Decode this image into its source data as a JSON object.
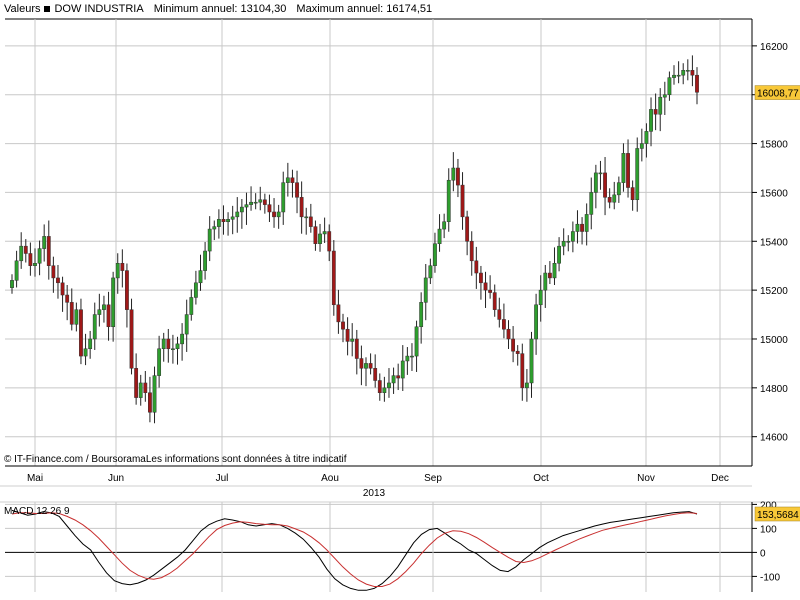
{
  "header": {
    "series_label": "Valeurs",
    "instrument": "DOW INDUSTRIA",
    "min_label": "Minimum annuel: 13104,30",
    "max_label": "Maximum annuel: 16174,51"
  },
  "credit": "© IT-Finance.com / BoursoramaLes informations sont données à titre indicatif",
  "macd_label": "MACD 12 26 9",
  "colors": {
    "up": "#2e9e2e",
    "down": "#a01818",
    "grid": "#c8c8c8",
    "badge": "#f8c838",
    "macd_line": "#000000",
    "signal_line": "#c83030"
  },
  "chart_data": [
    {
      "type": "candlestick",
      "y_ticks": [
        "16200",
        "16000",
        "15800",
        "15600",
        "15400",
        "15200",
        "15000",
        "14800",
        "14600"
      ],
      "y_tick_values": [
        16200,
        16000,
        15800,
        15600,
        15400,
        15200,
        15000,
        14800,
        14600
      ],
      "ylim": [
        14480,
        16310
      ],
      "x_ticks": [
        "Mai",
        "Jun",
        "Jul",
        "Aou",
        "Sep",
        "Oct",
        "Nov",
        "Dec"
      ],
      "x_year_label": "2013",
      "last_value_label": "16008,77",
      "last_value": 16008.77,
      "closes": [
        15240,
        15320,
        15380,
        15350,
        15300,
        15310,
        15370,
        15420,
        15300,
        15250,
        15230,
        15180,
        15150,
        15060,
        15120,
        14930,
        14960,
        15000,
        15100,
        15120,
        15140,
        15050,
        15250,
        15310,
        15280,
        15120,
        14880,
        14760,
        14820,
        14780,
        14700,
        14850,
        14960,
        15000,
        14960,
        14960,
        14980,
        15020,
        15100,
        15170,
        15230,
        15280,
        15360,
        15450,
        15460,
        15490,
        15480,
        15490,
        15500,
        15520,
        15540,
        15550,
        15560,
        15560,
        15570,
        15550,
        15520,
        15500,
        15520,
        15640,
        15660,
        15640,
        15580,
        15500,
        15500,
        15460,
        15390,
        15430,
        15440,
        15360,
        15140,
        15070,
        15040,
        14990,
        15000,
        14920,
        14880,
        14900,
        14880,
        14830,
        14780,
        14800,
        14820,
        14850,
        14840,
        14910,
        14930,
        14930,
        15050,
        15150,
        15250,
        15300,
        15390,
        15450,
        15480,
        15650,
        15700,
        15630,
        15500,
        15400,
        15320,
        15270,
        15230,
        15200,
        15190,
        15120,
        15080,
        15040,
        15000,
        14950,
        14940,
        14800,
        14820,
        15000,
        15140,
        15200,
        15270,
        15250,
        15310,
        15380,
        15400,
        15400,
        15440,
        15470,
        15440,
        15510,
        15600,
        15680,
        15680,
        15580,
        15560,
        15590,
        15640,
        15760,
        15620,
        15570,
        15780,
        15800,
        15850,
        15940,
        15920,
        15990,
        16000,
        16070,
        16080,
        16080,
        16100,
        16100,
        16080,
        16010
      ]
    },
    {
      "type": "line",
      "title": "MACD 12 26 9",
      "y_ticks": [
        "200",
        "100",
        "0",
        "-100"
      ],
      "y_tick_values": [
        200,
        100,
        0,
        -100
      ],
      "ylim": [
        -165,
        210
      ],
      "last_value_label": "153,5684",
      "series": [
        {
          "values": [
            175,
            165,
            155,
            160,
            170,
            165,
            150,
            110,
            70,
            35,
            10,
            -40,
            -85,
            -118,
            -130,
            -135,
            -128,
            -115,
            -95,
            -70,
            -45,
            -20,
            10,
            50,
            90,
            115,
            130,
            140,
            135,
            128,
            115,
            110,
            115,
            120,
            115,
            100,
            80,
            55,
            20,
            -20,
            -70,
            -110,
            -135,
            -150,
            -158,
            -158,
            -150,
            -130,
            -100,
            -60,
            -10,
            40,
            75,
            95,
            100,
            80,
            55,
            35,
            10,
            -5,
            -30,
            -55,
            -75,
            -80,
            -60,
            -30,
            -5,
            20,
            40,
            55,
            70,
            80,
            90,
            100,
            110,
            118,
            125,
            130,
            135,
            140,
            145,
            150,
            155,
            160,
            165,
            168,
            170,
            160
          ]
        },
        {
          "values": [
            160,
            165,
            165,
            162,
            162,
            165,
            162,
            150,
            135,
            115,
            90,
            60,
            25,
            -10,
            -45,
            -75,
            -95,
            -108,
            -112,
            -105,
            -88,
            -65,
            -35,
            -5,
            30,
            65,
            95,
            112,
            122,
            128,
            125,
            120,
            117,
            115,
            115,
            110,
            98,
            85,
            65,
            40,
            10,
            -25,
            -60,
            -90,
            -115,
            -132,
            -142,
            -142,
            -132,
            -110,
            -80,
            -45,
            -5,
            30,
            60,
            80,
            90,
            88,
            78,
            62,
            42,
            20,
            0,
            -20,
            -38,
            -42,
            -35,
            -22,
            -6,
            10,
            25,
            40,
            55,
            68,
            80,
            92,
            100,
            108,
            115,
            122,
            130,
            137,
            145,
            152,
            158,
            163,
            165,
            162
          ]
        }
      ]
    }
  ]
}
